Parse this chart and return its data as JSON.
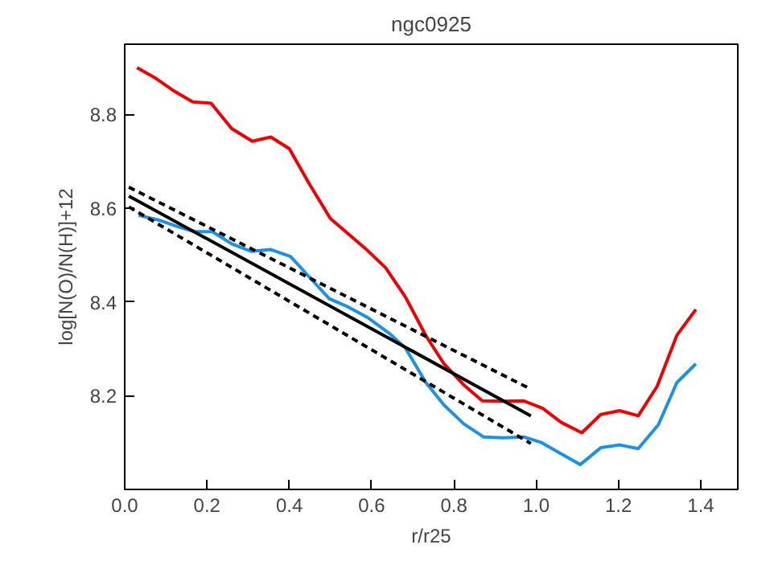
{
  "chart_data": {
    "type": "line",
    "title": "ngc0925",
    "xlabel": "r/r25",
    "ylabel": "log[N(O)/N(H)]+12",
    "xlim": [
      0,
      1.49
    ],
    "ylim": [
      8.0,
      8.95
    ],
    "xticks": [
      {
        "value": 0,
        "label": "0.0"
      },
      0.2,
      0.4,
      0.6,
      0.8,
      {
        "value": 1,
        "label": "1.0"
      },
      1.2,
      1.4
    ],
    "yticks": [
      8.2,
      8.4,
      8.6,
      8.8
    ],
    "grid": false,
    "marker": "none",
    "series": [
      {
        "color": "#ee0000",
        "line_style": "solid",
        "x": [
          0.03,
          0.076,
          0.12,
          0.165,
          0.21,
          0.26,
          0.31,
          0.355,
          0.4,
          0.45,
          0.5,
          0.545,
          0.59,
          0.634,
          0.682,
          0.732,
          0.776,
          0.824,
          0.869,
          0.92,
          0.97,
          1.016,
          1.061,
          1.111,
          1.157,
          1.203,
          1.248,
          1.294,
          1.342,
          1.388
        ],
        "values": [
          8.9,
          8.877,
          8.85,
          8.827,
          8.824,
          8.77,
          8.743,
          8.752,
          8.727,
          8.65,
          8.578,
          8.544,
          8.51,
          8.473,
          8.411,
          8.328,
          8.268,
          8.223,
          8.189,
          8.188,
          8.189,
          8.173,
          8.143,
          8.121,
          8.16,
          8.168,
          8.157,
          8.22,
          8.329,
          8.384
        ]
      },
      {
        "color": "#1e90e6",
        "line_style": "solid",
        "x": [
          0.034,
          0.082,
          0.128,
          0.17,
          0.213,
          0.26,
          0.307,
          0.354,
          0.403,
          0.448,
          0.497,
          0.544,
          0.59,
          0.643,
          0.682,
          0.732,
          0.776,
          0.824,
          0.872,
          0.92,
          0.97,
          1.013,
          1.061,
          1.107,
          1.157,
          1.203,
          1.248,
          1.297,
          1.342,
          1.388
        ],
        "values": [
          8.585,
          8.575,
          8.561,
          8.55,
          8.55,
          8.524,
          8.508,
          8.512,
          8.497,
          8.454,
          8.407,
          8.389,
          8.367,
          8.333,
          8.302,
          8.228,
          8.18,
          8.14,
          8.112,
          8.11,
          8.112,
          8.1,
          8.076,
          8.053,
          8.089,
          8.095,
          8.087,
          8.138,
          8.228,
          8.268
        ]
      },
      {
        "color": "#000000",
        "line_style": "solid",
        "x": [
          0.01,
          0.987
        ],
        "values": [
          8.626,
          8.157
        ]
      },
      {
        "color": "#000000",
        "line_style": "dashed",
        "x": [
          0.01,
          0.987
        ],
        "values": [
          8.645,
          8.214
        ]
      },
      {
        "color": "#000000",
        "line_style": "dashed",
        "x": [
          0.01,
          0.987
        ],
        "values": [
          8.603,
          8.098
        ]
      }
    ]
  }
}
